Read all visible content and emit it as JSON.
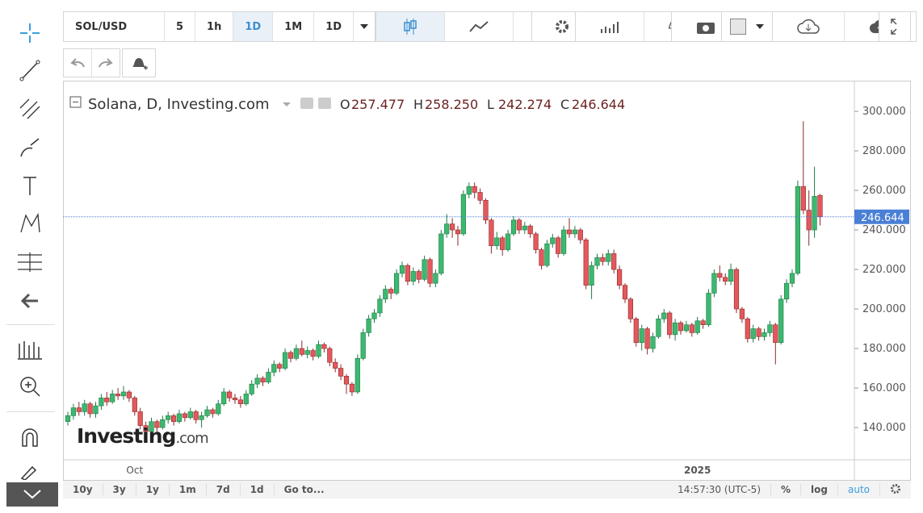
{
  "toolbar": {
    "symbol": "SOL/USD",
    "intervals": [
      "5",
      "1h",
      "1D",
      "1M"
    ],
    "chart_type": "1D"
  },
  "bottom_bar": {
    "ranges": [
      "10y",
      "3y",
      "1y",
      "1m",
      "7d",
      "1d"
    ],
    "goto": "Go to...",
    "time": "14:57:30 (UTC-5)",
    "percent": "%",
    "log": "log",
    "auto": "auto"
  },
  "chart_data": {
    "type": "candlestick",
    "title": "Solana, D, Investing.com",
    "header_values": [
      {
        "label": "O",
        "value": "257.477"
      },
      {
        "label": "H",
        "value": "258.250"
      },
      {
        "label": "L",
        "value": "242.274"
      },
      {
        "label": "C",
        "value": "246.644"
      }
    ],
    "watermark": "Investing",
    "watermark_suffix": ".com",
    "up_color": "#3cb96f",
    "down_color": "#e4585c",
    "categories": [
      null,
      null,
      null,
      null,
      null,
      null,
      null,
      null,
      null,
      null,
      null,
      null,
      "Oct",
      null,
      null,
      null,
      null,
      null,
      null,
      null,
      null,
      null,
      null,
      null,
      null,
      null,
      null,
      null,
      null,
      null,
      null,
      null,
      null,
      null,
      null,
      null,
      null,
      null,
      null,
      null,
      null,
      null,
      null,
      null,
      null,
      null,
      null,
      null,
      null,
      null,
      null,
      null,
      null,
      null,
      null,
      null,
      null,
      null,
      null,
      null,
      null,
      null,
      null,
      null,
      null,
      null,
      null,
      null,
      null,
      null,
      null,
      null,
      null,
      null,
      null,
      null,
      null,
      null,
      null,
      null,
      null,
      null,
      null,
      null,
      null,
      null,
      null,
      null,
      null,
      null,
      null,
      null,
      null,
      null,
      null,
      null,
      null,
      null,
      null,
      null,
      null,
      null,
      null,
      null,
      null,
      null,
      null,
      null,
      null,
      null,
      null,
      null,
      null,
      "2025",
      null,
      null,
      null,
      null,
      null,
      null,
      null,
      null,
      null,
      null,
      null,
      null,
      null,
      null,
      null,
      null,
      null,
      null,
      null,
      null,
      null,
      null,
      null,
      null
    ],
    "ohlc": [
      [
        143,
        148,
        141,
        146
      ],
      [
        146,
        152,
        144,
        150
      ],
      [
        150,
        153,
        146,
        148
      ],
      [
        148,
        154,
        146,
        152
      ],
      [
        152,
        153,
        145,
        147
      ],
      [
        147,
        153,
        145,
        151
      ],
      [
        151,
        157,
        149,
        155
      ],
      [
        155,
        158,
        151,
        153
      ],
      [
        153,
        159,
        152,
        157
      ],
      [
        157,
        160,
        154,
        156
      ],
      [
        156,
        161,
        154,
        158
      ],
      [
        158,
        159,
        153,
        155
      ],
      [
        155,
        156,
        146,
        148
      ],
      [
        148,
        150,
        139,
        141
      ],
      [
        141,
        143,
        135,
        138
      ],
      [
        138,
        145,
        137,
        143
      ],
      [
        143,
        144,
        138,
        140
      ],
      [
        140,
        146,
        139,
        144
      ],
      [
        144,
        148,
        142,
        146
      ],
      [
        146,
        147,
        141,
        143
      ],
      [
        143,
        149,
        142,
        147
      ],
      [
        147,
        148,
        143,
        145
      ],
      [
        145,
        150,
        144,
        148
      ],
      [
        148,
        149,
        142,
        144
      ],
      [
        144,
        148,
        140,
        146
      ],
      [
        146,
        151,
        145,
        149
      ],
      [
        149,
        150,
        145,
        147
      ],
      [
        147,
        154,
        146,
        152
      ],
      [
        152,
        160,
        151,
        158
      ],
      [
        158,
        159,
        153,
        155
      ],
      [
        155,
        157,
        152,
        154
      ],
      [
        154,
        156,
        150,
        152
      ],
      [
        152,
        159,
        151,
        157
      ],
      [
        157,
        164,
        156,
        162
      ],
      [
        162,
        167,
        160,
        165
      ],
      [
        165,
        166,
        161,
        163
      ],
      [
        163,
        170,
        162,
        168
      ],
      [
        168,
        174,
        166,
        172
      ],
      [
        172,
        173,
        168,
        170
      ],
      [
        170,
        180,
        169,
        178
      ],
      [
        178,
        179,
        173,
        175
      ],
      [
        175,
        182,
        174,
        180
      ],
      [
        180,
        184,
        176,
        177
      ],
      [
        177,
        181,
        175,
        179
      ],
      [
        179,
        180,
        174,
        176
      ],
      [
        176,
        184,
        175,
        182
      ],
      [
        182,
        183,
        178,
        180
      ],
      [
        180,
        181,
        171,
        173
      ],
      [
        173,
        175,
        168,
        170
      ],
      [
        170,
        172,
        164,
        166
      ],
      [
        166,
        167,
        157,
        162
      ],
      [
        162,
        163,
        156,
        158
      ],
      [
        158,
        177,
        157,
        175
      ],
      [
        175,
        190,
        174,
        188
      ],
      [
        188,
        197,
        186,
        195
      ],
      [
        195,
        200,
        193,
        198
      ],
      [
        198,
        207,
        196,
        205
      ],
      [
        205,
        212,
        203,
        210
      ],
      [
        210,
        211,
        205,
        208
      ],
      [
        208,
        220,
        207,
        218
      ],
      [
        218,
        224,
        216,
        222
      ],
      [
        222,
        223,
        212,
        214
      ],
      [
        214,
        221,
        212,
        219
      ],
      [
        219,
        220,
        213,
        215
      ],
      [
        215,
        227,
        214,
        225
      ],
      [
        225,
        226,
        211,
        213
      ],
      [
        213,
        220,
        211,
        218
      ],
      [
        218,
        240,
        217,
        238
      ],
      [
        238,
        248,
        236,
        243
      ],
      [
        243,
        246,
        236,
        240
      ],
      [
        240,
        242,
        232,
        238
      ],
      [
        238,
        260,
        237,
        258
      ],
      [
        258,
        264,
        256,
        262
      ],
      [
        262,
        264,
        256,
        259
      ],
      [
        259,
        261,
        253,
        255
      ],
      [
        255,
        256,
        243,
        245
      ],
      [
        245,
        246,
        228,
        232
      ],
      [
        232,
        239,
        230,
        236
      ],
      [
        236,
        237,
        227,
        230
      ],
      [
        230,
        240,
        229,
        238
      ],
      [
        238,
        247,
        237,
        245
      ],
      [
        245,
        246,
        238,
        240
      ],
      [
        240,
        244,
        238,
        242
      ],
      [
        242,
        243,
        236,
        238
      ],
      [
        238,
        239,
        228,
        230
      ],
      [
        230,
        231,
        220,
        222
      ],
      [
        222,
        235,
        221,
        233
      ],
      [
        233,
        238,
        231,
        236
      ],
      [
        236,
        237,
        226,
        228
      ],
      [
        228,
        242,
        227,
        240
      ],
      [
        240,
        246,
        236,
        238
      ],
      [
        238,
        242,
        236,
        240
      ],
      [
        240,
        241,
        233,
        235
      ],
      [
        235,
        236,
        210,
        212
      ],
      [
        212,
        224,
        205,
        222
      ],
      [
        222,
        228,
        220,
        226
      ],
      [
        226,
        228,
        222,
        224
      ],
      [
        224,
        230,
        222,
        228
      ],
      [
        228,
        230,
        218,
        220
      ],
      [
        220,
        222,
        210,
        212
      ],
      [
        212,
        213,
        203,
        205
      ],
      [
        205,
        206,
        193,
        195
      ],
      [
        195,
        196,
        181,
        183
      ],
      [
        183,
        192,
        179,
        190
      ],
      [
        190,
        191,
        177,
        180
      ],
      [
        180,
        188,
        178,
        186
      ],
      [
        186,
        197,
        185,
        195
      ],
      [
        195,
        200,
        193,
        198
      ],
      [
        198,
        199,
        185,
        187
      ],
      [
        187,
        195,
        184,
        193
      ],
      [
        193,
        194,
        187,
        189
      ],
      [
        189,
        194,
        188,
        192
      ],
      [
        192,
        193,
        186,
        188
      ],
      [
        188,
        196,
        187,
        194
      ],
      [
        194,
        195,
        190,
        192
      ],
      [
        192,
        210,
        191,
        208
      ],
      [
        208,
        220,
        206,
        218
      ],
      [
        218,
        222,
        214,
        216
      ],
      [
        216,
        218,
        212,
        214
      ],
      [
        214,
        223,
        212,
        220
      ],
      [
        220,
        221,
        198,
        200
      ],
      [
        200,
        201,
        193,
        195
      ],
      [
        195,
        196,
        183,
        185
      ],
      [
        185,
        192,
        183,
        190
      ],
      [
        190,
        191,
        184,
        186
      ],
      [
        186,
        190,
        184,
        188
      ],
      [
        188,
        194,
        186,
        192
      ],
      [
        192,
        193,
        172,
        183
      ],
      [
        183,
        207,
        182,
        205
      ],
      [
        205,
        215,
        203,
        213
      ],
      [
        213,
        220,
        211,
        218
      ],
      [
        218,
        265,
        217,
        262
      ],
      [
        262,
        295,
        248,
        250
      ],
      [
        250,
        260,
        232,
        240
      ],
      [
        240,
        272,
        236,
        257
      ],
      [
        257.477,
        258.25,
        242.274,
        246.644
      ]
    ],
    "ylim": [
      123.7,
      314.3
    ],
    "yticks": [
      {
        "value": 140,
        "label": "140.000"
      },
      {
        "value": 160,
        "label": "160.000"
      },
      {
        "value": 180,
        "label": "180.000"
      },
      {
        "value": 200,
        "label": "200.000"
      },
      {
        "value": 220,
        "label": "220.000"
      },
      {
        "value": 240,
        "label": "240.000"
      },
      {
        "value": 260,
        "label": "260.000"
      },
      {
        "value": 280,
        "label": "280.000"
      },
      {
        "value": 300,
        "label": "300.000"
      }
    ],
    "last_price_color": "#4a7fd6",
    "grid": false
  }
}
